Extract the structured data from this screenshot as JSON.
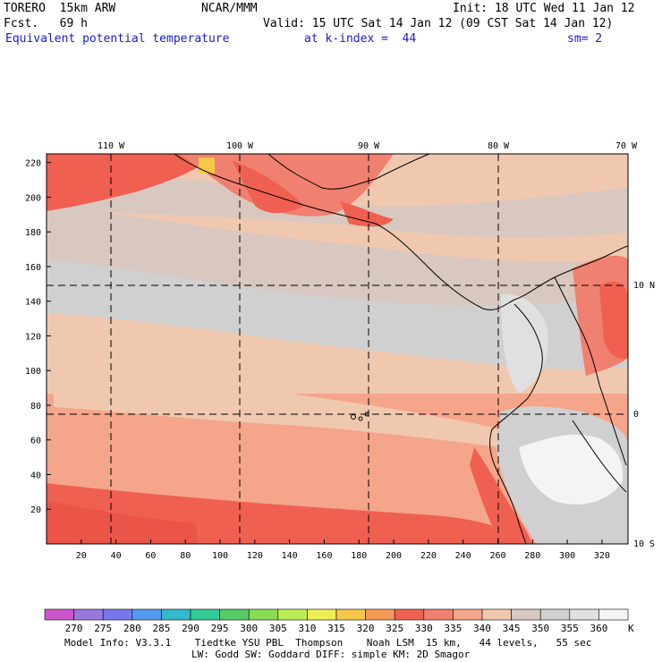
{
  "header": {
    "model": "TORERO  15km ARW",
    "center": "NCAR/MMM",
    "init": "Init: 18 UTC Wed 11 Jan 12",
    "fcst": "Fcst.   69 h",
    "valid": "Valid: 15 UTC Sat 14 Jan 12 (09 CST Sat 14 Jan 12)",
    "field": "Equivalent potential temperature",
    "level": "at k-index =  44",
    "smooth": "sm= 2"
  },
  "map": {
    "lon_labels": [
      "110 W",
      "100 W",
      "90 W",
      "80 W",
      "70 W"
    ],
    "lat_labels": [
      "10 N",
      "0",
      "10 S"
    ],
    "x_ticks": [
      "20",
      "40",
      "60",
      "80",
      "100",
      "120",
      "140",
      "160",
      "180",
      "200",
      "220",
      "240",
      "260",
      "280",
      "300",
      "320"
    ],
    "y_ticks": [
      "220",
      "200",
      "180",
      "160",
      "140",
      "120",
      "100",
      "80",
      "60",
      "40",
      "20"
    ]
  },
  "colorbar": {
    "labels": [
      "270",
      "275",
      "280",
      "285",
      "290",
      "295",
      "300",
      "305",
      "310",
      "315",
      "320",
      "325",
      "330",
      "335",
      "340",
      "345",
      "350",
      "355",
      "360"
    ],
    "unit": "K",
    "colors": [
      "#cc55cc",
      "#9977dd",
      "#7777ee",
      "#5599ee",
      "#33bbcc",
      "#33cc99",
      "#55cc66",
      "#88dd55",
      "#bbee55",
      "#eeee55",
      "#f5c84a",
      "#f59a55",
      "#f06050",
      "#f08070",
      "#f5a58a",
      "#f0c8b0",
      "#d8c8c0",
      "#d0d0d0",
      "#e0e0e0",
      "#f4f4f4"
    ]
  },
  "footer": {
    "line1": "Model Info: V3.3.1    Tiedtke YSU PBL  Thompson    Noah LSM  15 km,   44 levels,   55 sec",
    "line2": "LW: Godd SW: Goddard DIFF: simple KM: 2D Smagor"
  }
}
